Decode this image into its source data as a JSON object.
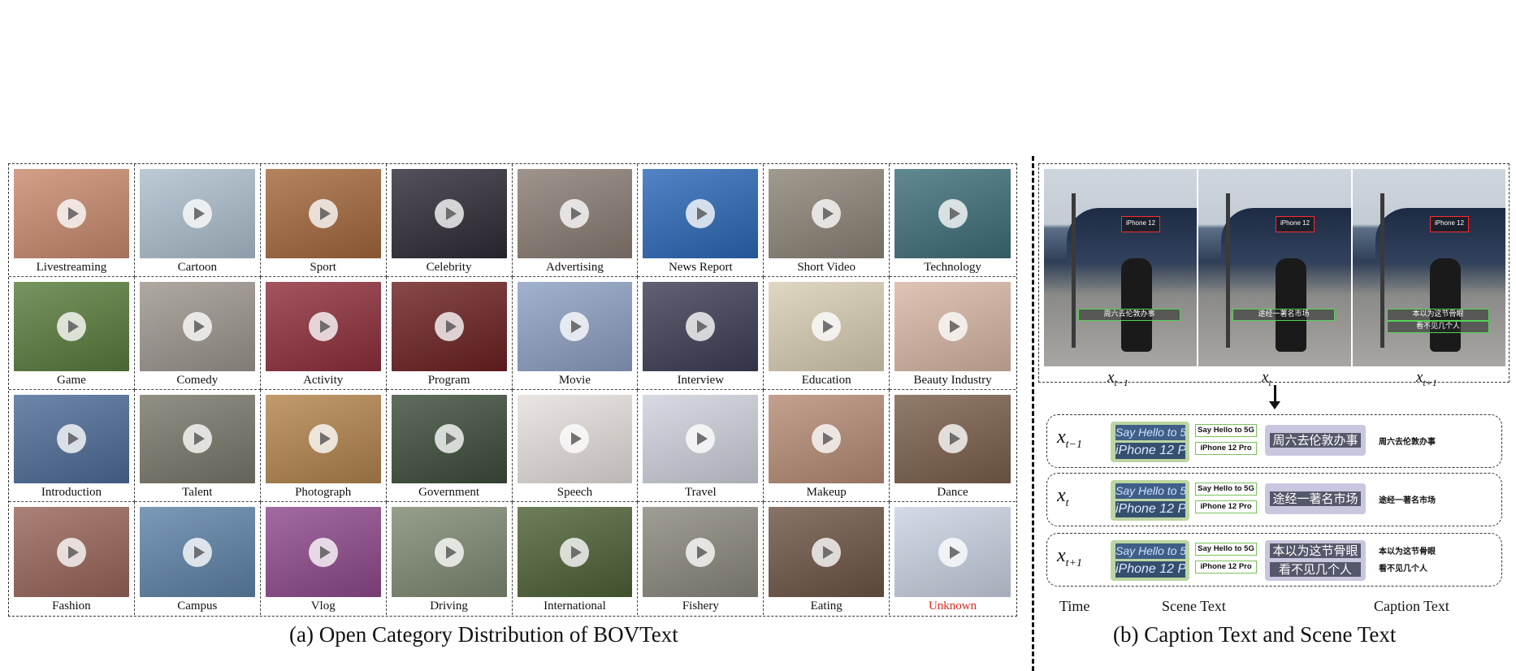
{
  "panel_a": {
    "caption": "(a) Open Category Distribution of BOVText",
    "categories": [
      {
        "label": "Livestreaming",
        "bg": "#c98a6f"
      },
      {
        "label": "Cartoon",
        "bg": "#aebfce"
      },
      {
        "label": "Sport",
        "bg": "#a4683c"
      },
      {
        "label": "Celebrity",
        "bg": "#2f2b36"
      },
      {
        "label": "Advertising",
        "bg": "#8a7d72"
      },
      {
        "label": "News Report",
        "bg": "#2c69b8"
      },
      {
        "label": "Short Video",
        "bg": "#8c8477"
      },
      {
        "label": "Technology",
        "bg": "#3f6f7a"
      },
      {
        "label": "Game",
        "bg": "#5a7c3c"
      },
      {
        "label": "Comedy",
        "bg": "#9d968e"
      },
      {
        "label": "Activity",
        "bg": "#8e2f3c"
      },
      {
        "label": "Program",
        "bg": "#6c2121"
      },
      {
        "label": "Movie",
        "bg": "#8ea0c3"
      },
      {
        "label": "Interview",
        "bg": "#3d3f55"
      },
      {
        "label": "Education",
        "bg": "#d9ceb5"
      },
      {
        "label": "Beauty Industry",
        "bg": "#d8b7a5"
      },
      {
        "label": "Introduction",
        "bg": "#4d6c98"
      },
      {
        "label": "Talent",
        "bg": "#7a786a"
      },
      {
        "label": "Photograph",
        "bg": "#b3844d"
      },
      {
        "label": "Government",
        "bg": "#3d4e3a"
      },
      {
        "label": "Speech",
        "bg": "#e6e0dc"
      },
      {
        "label": "Travel",
        "bg": "#cfd2dc"
      },
      {
        "label": "Makeup",
        "bg": "#b78b76"
      },
      {
        "label": "Dance",
        "bg": "#7c5f4b"
      },
      {
        "label": "Fashion",
        "bg": "#98655a"
      },
      {
        "label": "Campus",
        "bg": "#5e83a8"
      },
      {
        "label": "Vlog",
        "bg": "#8f4a8c"
      },
      {
        "label": "Driving",
        "bg": "#7e8a73"
      },
      {
        "label": "International",
        "bg": "#4e6237"
      },
      {
        "label": "Fishery",
        "bg": "#8c887e"
      },
      {
        "label": "Eating",
        "bg": "#6e5546"
      },
      {
        "label": "Unknown",
        "bg": "#c9d3e2",
        "red": true
      }
    ]
  },
  "panel_b": {
    "caption": "(b) Caption Text and Scene Text",
    "frames": [
      {
        "var": "x",
        "sub": "t−1",
        "sign": "iPhone 12 Pro",
        "subtitle": "周六去伦敦办事",
        "subtitle2": ""
      },
      {
        "var": "x",
        "sub": "t",
        "sign": "iPhone 12 Pro",
        "subtitle": "途经一著名市场",
        "subtitle2": ""
      },
      {
        "var": "x",
        "sub": "t+1",
        "sign": "iPhone 12 Pro",
        "subtitle": "本以为这节骨眼",
        "subtitle2": "看不见几个人"
      }
    ],
    "rows": [
      {
        "var": "x",
        "sub": "t−1",
        "scene_line1": "Say Hello to 5G",
        "scene_line2": "iPhone 12 Pro",
        "scene_text1": "Say Hello to 5G",
        "scene_text2": "iPhone 12 Pro",
        "caption_line1": "周六去伦敦办事",
        "caption_line2": "",
        "caption_text1": "周六去伦敦办事",
        "caption_text2": ""
      },
      {
        "var": "x",
        "sub": "t",
        "scene_line1": "Say Hello to 5G",
        "scene_line2": "iPhone 12 Pro",
        "scene_text1": "Say Hello to 5G",
        "scene_text2": "iPhone 12 Pro",
        "caption_line1": "途经一著名市场",
        "caption_line2": "",
        "caption_text1": "途经一著名市场",
        "caption_text2": ""
      },
      {
        "var": "x",
        "sub": "t+1",
        "scene_line1": "Say Hello to 5G",
        "scene_line2": "iPhone 12 Pro",
        "scene_text1": "Say Hello to 5G",
        "scene_text2": "iPhone 12 Pro",
        "caption_line1": "本以为这节骨眼",
        "caption_line2": "看不见几个人",
        "caption_text1": "本以为这节骨眼",
        "caption_text2": "看不见几个人"
      }
    ],
    "labels": {
      "time": "Time",
      "scene": "Scene Text",
      "caption": "Caption Text"
    }
  }
}
